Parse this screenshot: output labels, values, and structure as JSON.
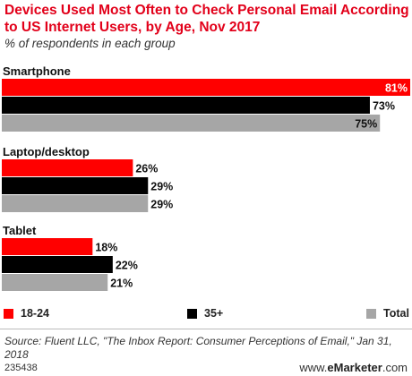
{
  "header": {
    "title": "Devices Used Most Often to Check Personal Email According to US Internet Users, by Age, Nov 2017",
    "subtitle": "% of respondents in each group"
  },
  "chart_data": {
    "type": "bar",
    "orientation": "horizontal",
    "title": "Devices Used Most Often to Check Personal Email According to US Internet Users, by Age, Nov 2017",
    "subtitle": "% of respondents in each group",
    "categories": [
      "Smartphone",
      "Laptop/desktop",
      "Tablet"
    ],
    "series": [
      {
        "name": "18-24",
        "values": [
          81,
          26,
          18
        ],
        "color": "#ff0000"
      },
      {
        "name": "35+",
        "values": [
          73,
          29,
          22
        ],
        "color": "#000000"
      },
      {
        "name": "Total",
        "values": [
          75,
          29,
          21
        ],
        "color": "#a6a6a6"
      }
    ],
    "value_suffix": "%",
    "xlim": [
      0,
      81
    ],
    "grid": false,
    "legend_position": "bottom"
  },
  "footer": {
    "source": "Source: Fluent LLC, \"The Inbox Report: Consumer Perceptions of Email,\" Jan 31, 2018",
    "chart_id": "235438",
    "brand_prefix": "www.",
    "brand_name": "eMarketer",
    "brand_suffix": ".com"
  }
}
